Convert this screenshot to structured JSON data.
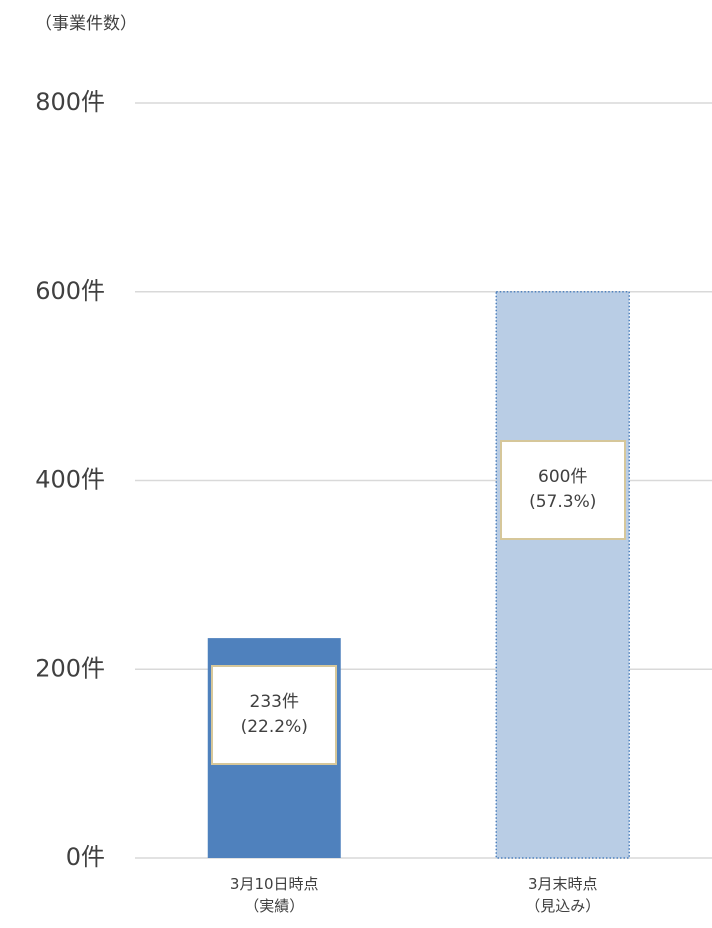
{
  "chart_data": {
    "type": "bar",
    "y_axis_label": "（事業件数）",
    "categories": [
      "3月10日時点\n（実績）",
      "3月末時点\n（見込み）"
    ],
    "values": [
      233,
      600
    ],
    "value_labels": [
      "233件\n(22.2%)",
      "600件\n(57.3%)"
    ],
    "colors": [
      "#4f81bd",
      "#b9cde5"
    ],
    "edge_styles": [
      "none",
      "dotted"
    ],
    "ylim": [
      0,
      800
    ],
    "yticks": [
      {
        "value": 0,
        "label": "0件"
      },
      {
        "value": 200,
        "label": "200件"
      },
      {
        "value": 400,
        "label": "400件"
      },
      {
        "value": 600,
        "label": "600件"
      },
      {
        "value": 800,
        "label": "800件"
      }
    ],
    "grid": true
  }
}
